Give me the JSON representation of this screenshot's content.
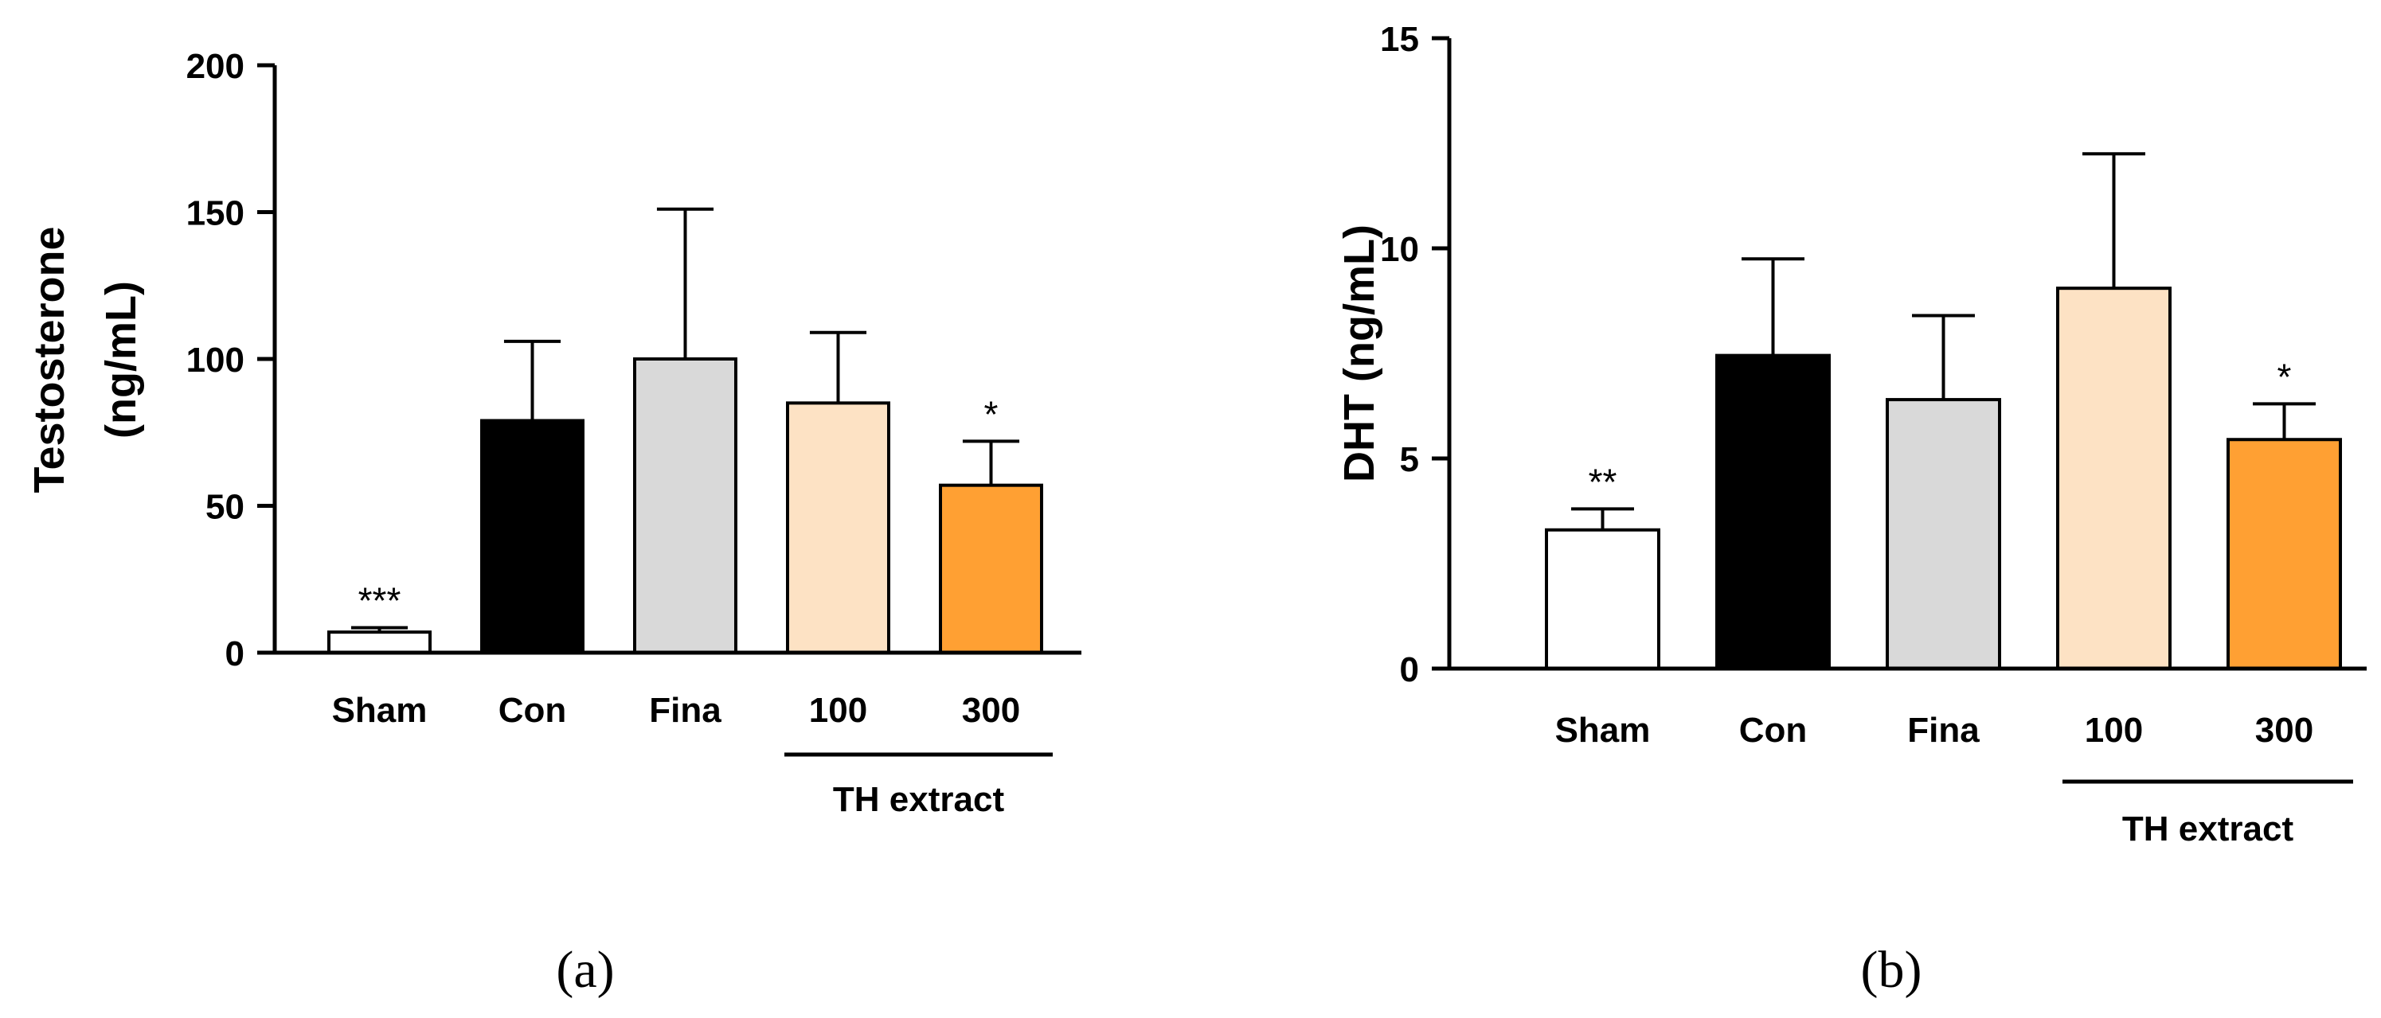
{
  "chart_data": [
    {
      "panel_label": "(a)",
      "type": "bar",
      "categories": [
        "Sham",
        "Con",
        "Fina",
        "100",
        "300"
      ],
      "values": [
        7,
        79,
        100,
        85,
        57
      ],
      "errors": [
        1.5,
        27,
        51,
        24,
        15
      ],
      "significance": [
        "***",
        "",
        "",
        "",
        "*"
      ],
      "colors": [
        "#ffffff",
        "#000000",
        "#d9d9d9",
        "#fde2c4",
        "#ffa033"
      ],
      "ylabel_line1": "Testosterone",
      "ylabel_line2": "(ng/mL)",
      "ylim": [
        0,
        200
      ],
      "yticks": [
        0,
        50,
        100,
        150,
        200
      ],
      "group_label": "TH extract",
      "group_categories": [
        "100",
        "300"
      ]
    },
    {
      "panel_label": "(b)",
      "type": "bar",
      "categories": [
        "Sham",
        "Con",
        "Fina",
        "100",
        "300"
      ],
      "values": [
        3.3,
        7.45,
        6.4,
        9.05,
        5.45
      ],
      "errors": [
        0.5,
        2.3,
        2.0,
        3.2,
        0.85
      ],
      "significance": [
        "**",
        "",
        "",
        "",
        "*"
      ],
      "colors": [
        "#ffffff",
        "#000000",
        "#d9d9d9",
        "#fde2c4",
        "#ffa033"
      ],
      "ylabel_line1": "DHT (ng/mL)",
      "ylabel_line2": "",
      "ylim": [
        0,
        15
      ],
      "yticks": [
        0,
        5,
        10,
        15
      ],
      "group_label": "TH extract",
      "group_categories": [
        "100",
        "300"
      ]
    }
  ]
}
